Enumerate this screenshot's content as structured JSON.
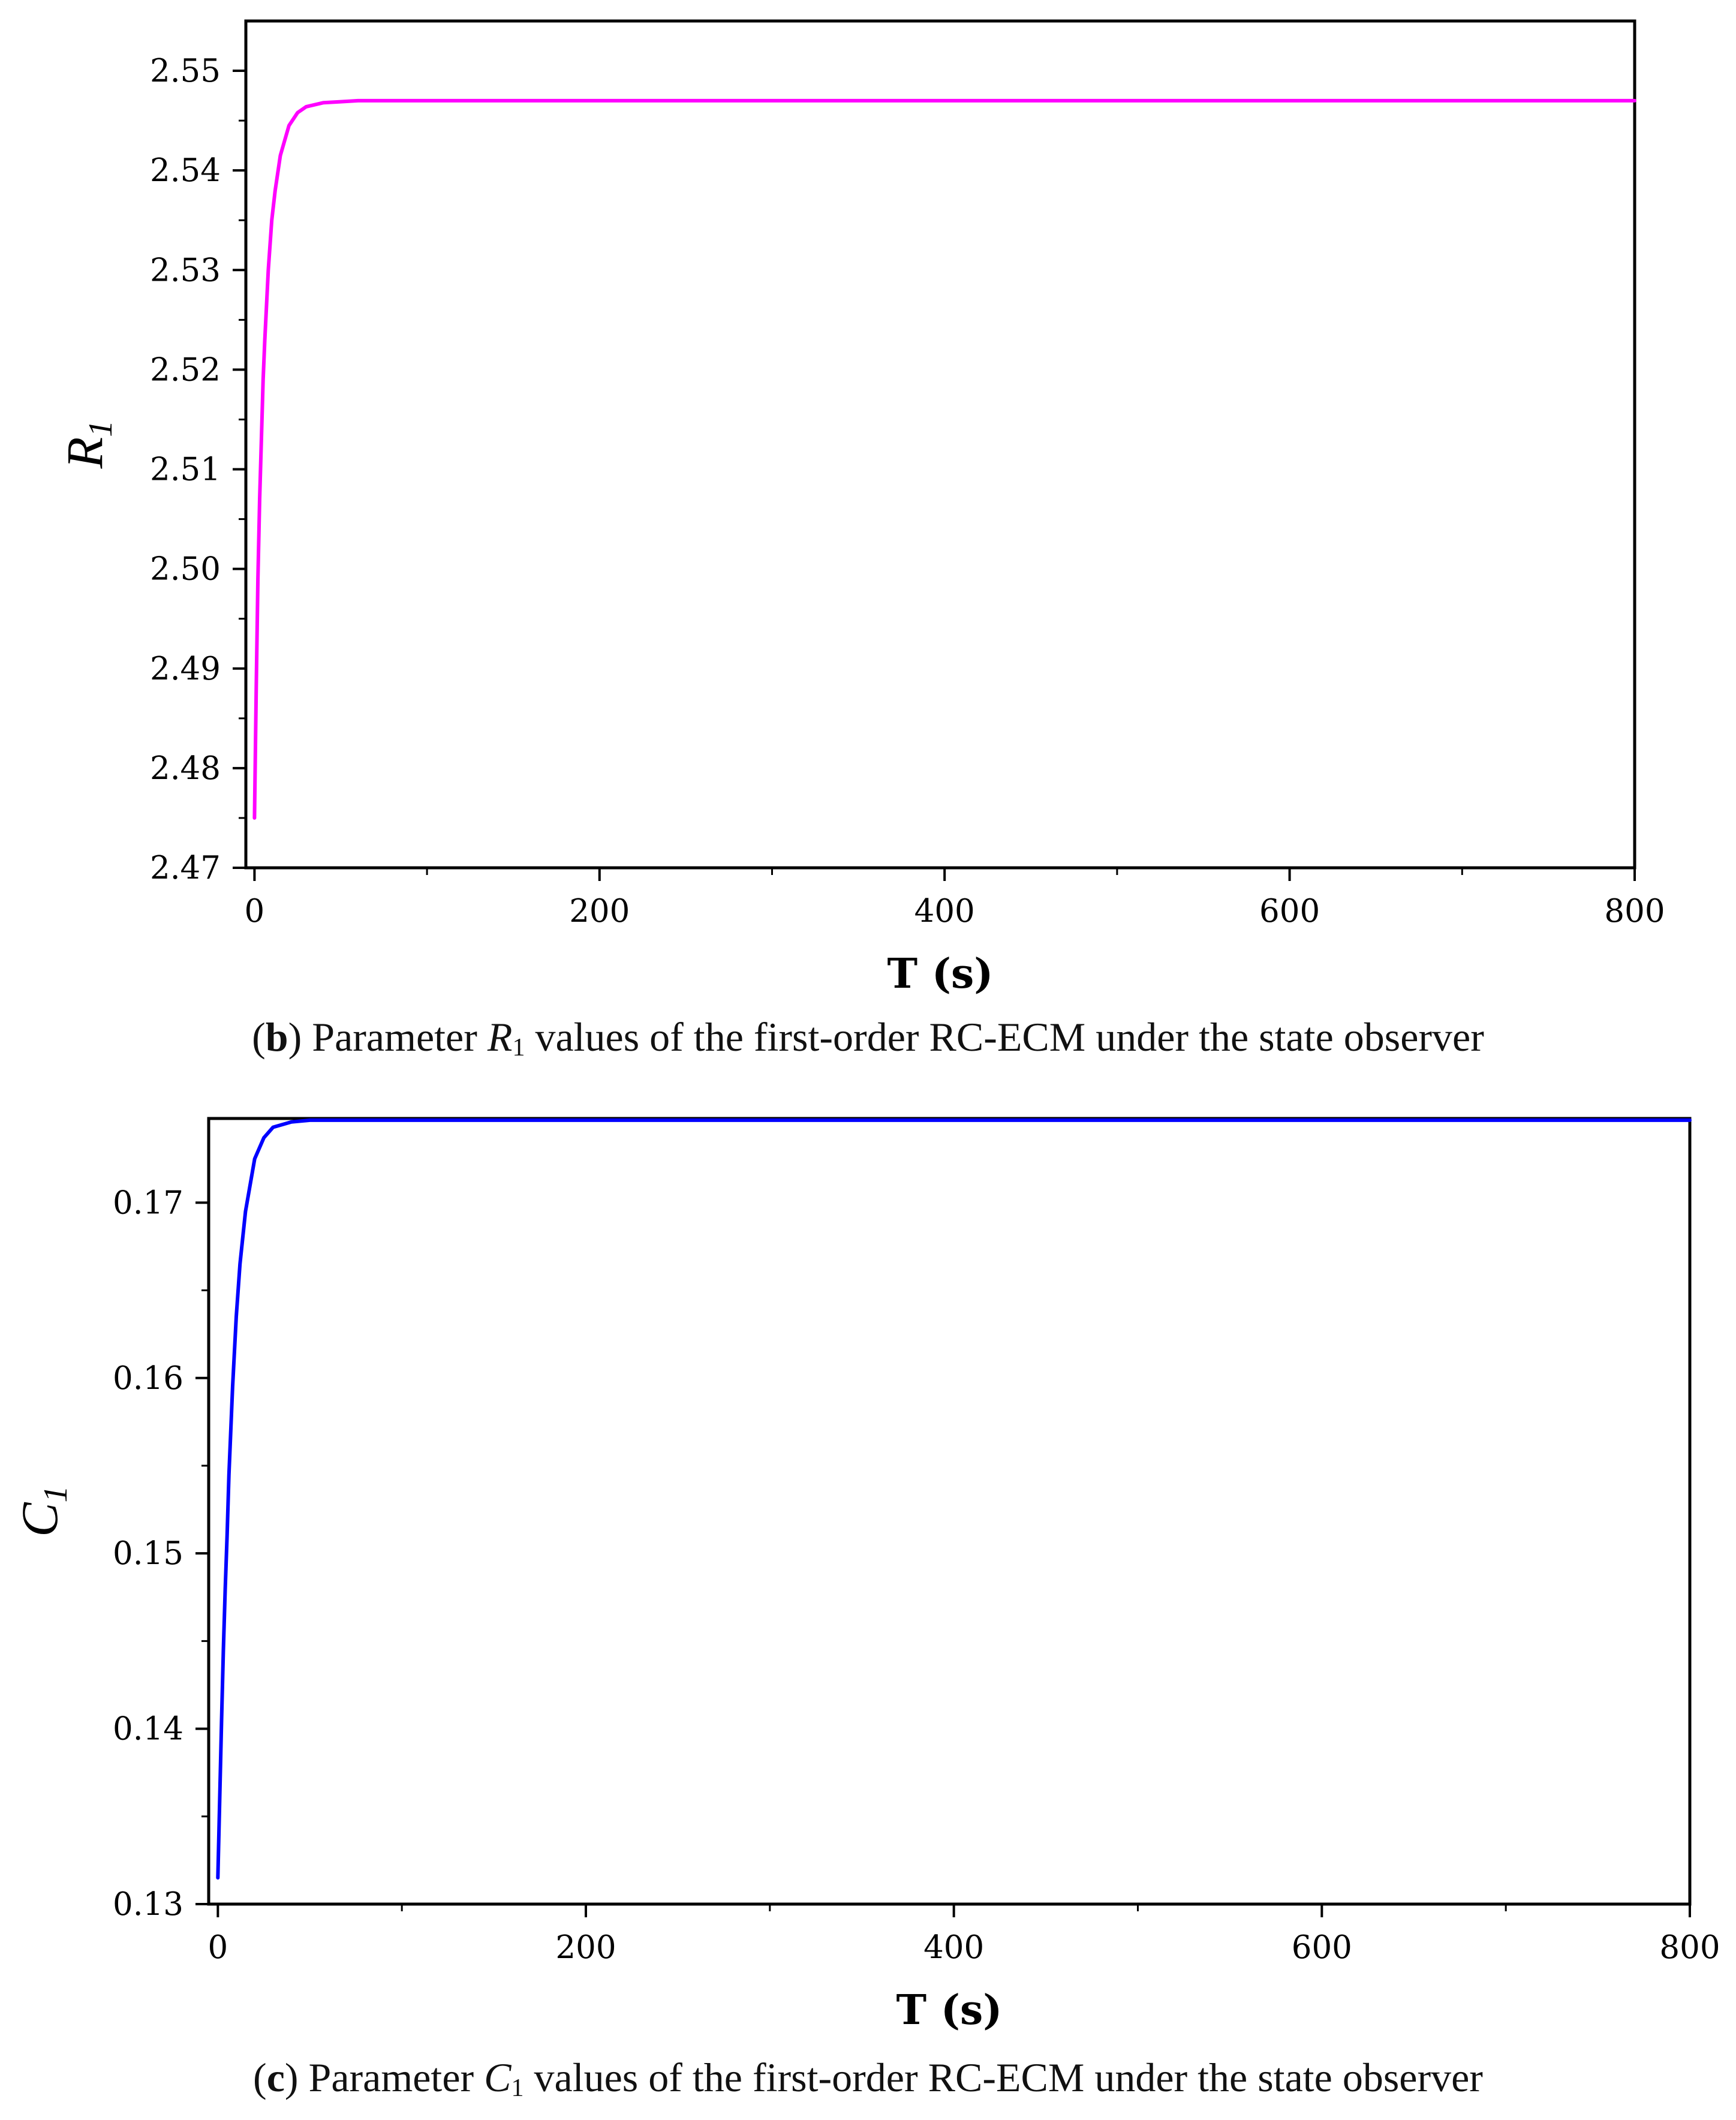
{
  "chart_data": [
    {
      "type": "line",
      "panel": "b",
      "caption": {
        "letter": "b",
        "text_before": " Parameter ",
        "symbol": "R",
        "symbol_sub": "1",
        "text_after": " values of the first-order RC-ECM under the state observer"
      },
      "xlabel": "T (s)",
      "ylabel": "R",
      "ylabel_sub": "1",
      "xlim": [
        -5,
        800
      ],
      "ylim": [
        2.47,
        2.555
      ],
      "xticks": [
        0,
        200,
        400,
        600,
        800
      ],
      "xtick_labels": [
        "0",
        "200",
        "400",
        "600",
        "800"
      ],
      "yticks": [
        2.47,
        2.48,
        2.49,
        2.5,
        2.51,
        2.52,
        2.53,
        2.54,
        2.55
      ],
      "ytick_labels": [
        "2.47",
        "2.48",
        "2.49",
        "2.50",
        "2.51",
        "2.52",
        "2.53",
        "2.54",
        "2.55"
      ],
      "line_color": "#ff00ff",
      "series": [
        {
          "x": [
            0,
            1,
            2,
            3,
            4,
            5,
            6,
            8,
            10,
            12,
            15,
            20,
            25,
            30,
            40,
            50,
            60,
            80,
            100,
            200,
            400,
            600,
            800
          ],
          "y": [
            2.475,
            2.488,
            2.499,
            2.507,
            2.513,
            2.519,
            2.523,
            2.53,
            2.535,
            2.538,
            2.5415,
            2.5445,
            2.5458,
            2.5464,
            2.5468,
            2.5469,
            2.547,
            2.547,
            2.547,
            2.547,
            2.547,
            2.547,
            2.547
          ]
        }
      ]
    },
    {
      "type": "line",
      "panel": "c",
      "caption": {
        "letter": "c",
        "text_before": " Parameter ",
        "symbol": "C",
        "symbol_sub": "1",
        "text_after": " values of the first-order RC-ECM under the state observer"
      },
      "xlabel": "T (s)",
      "ylabel": "C",
      "ylabel_sub": "1",
      "xlim": [
        -5,
        800
      ],
      "ylim": [
        0.13,
        0.1748
      ],
      "xticks": [
        0,
        200,
        400,
        600,
        800
      ],
      "xtick_labels": [
        "0",
        "200",
        "400",
        "600",
        "800"
      ],
      "yticks": [
        0.13,
        0.14,
        0.15,
        0.16,
        0.17
      ],
      "ytick_labels": [
        "0.13",
        "0.14",
        "0.15",
        "0.16",
        "0.17"
      ],
      "line_color": "#0000ff",
      "series": [
        {
          "x": [
            0,
            1,
            2,
            3,
            4,
            5,
            6,
            8,
            10,
            12,
            15,
            20,
            25,
            30,
            40,
            50,
            60,
            80,
            100,
            200,
            400,
            600,
            800
          ],
          "y": [
            0.1315,
            0.136,
            0.1405,
            0.1445,
            0.148,
            0.151,
            0.1545,
            0.1595,
            0.1635,
            0.1665,
            0.1695,
            0.1725,
            0.1737,
            0.1743,
            0.1746,
            0.1747,
            0.1747,
            0.1747,
            0.1747,
            0.1747,
            0.1747,
            0.1747,
            0.1747
          ]
        }
      ]
    }
  ]
}
